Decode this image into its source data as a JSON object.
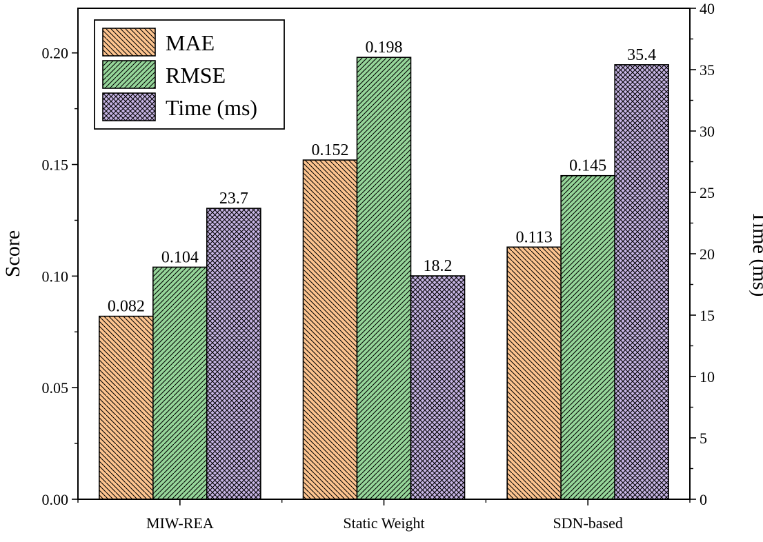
{
  "chart_data": {
    "type": "bar",
    "title": "",
    "categories": [
      "MIW-REA",
      "Static Weight",
      "SDN-based"
    ],
    "series": [
      {
        "name": "MAE",
        "axis": "left",
        "values": [
          0.082,
          0.152,
          0.113
        ],
        "labels": [
          "0.082",
          "0.152",
          "0.113"
        ],
        "color": "#fdc48f",
        "pattern": "diagonal-down"
      },
      {
        "name": "RMSE",
        "axis": "left",
        "values": [
          0.104,
          0.198,
          0.145
        ],
        "labels": [
          "0.104",
          "0.198",
          "0.145"
        ],
        "color": "#96d69a",
        "pattern": "diagonal-up"
      },
      {
        "name": "Time (ms)",
        "axis": "right",
        "values": [
          23.7,
          18.2,
          35.4
        ],
        "labels": [
          "23.7",
          "18.2",
          "35.4"
        ],
        "color": "#c7b5e5",
        "pattern": "crosshatch"
      }
    ],
    "ylabel": "Score",
    "y2label": "Time (ms)",
    "xlabel": "",
    "ylim": [
      0,
      0.22
    ],
    "y2lim": [
      0,
      40
    ],
    "yticks": [
      "0.00",
      "0.05",
      "0.10",
      "0.15",
      "0.20"
    ],
    "y2ticks": [
      "0",
      "5",
      "10",
      "15",
      "20",
      "25",
      "30",
      "35",
      "40"
    ],
    "legend_position": "top-left",
    "grid": false
  }
}
